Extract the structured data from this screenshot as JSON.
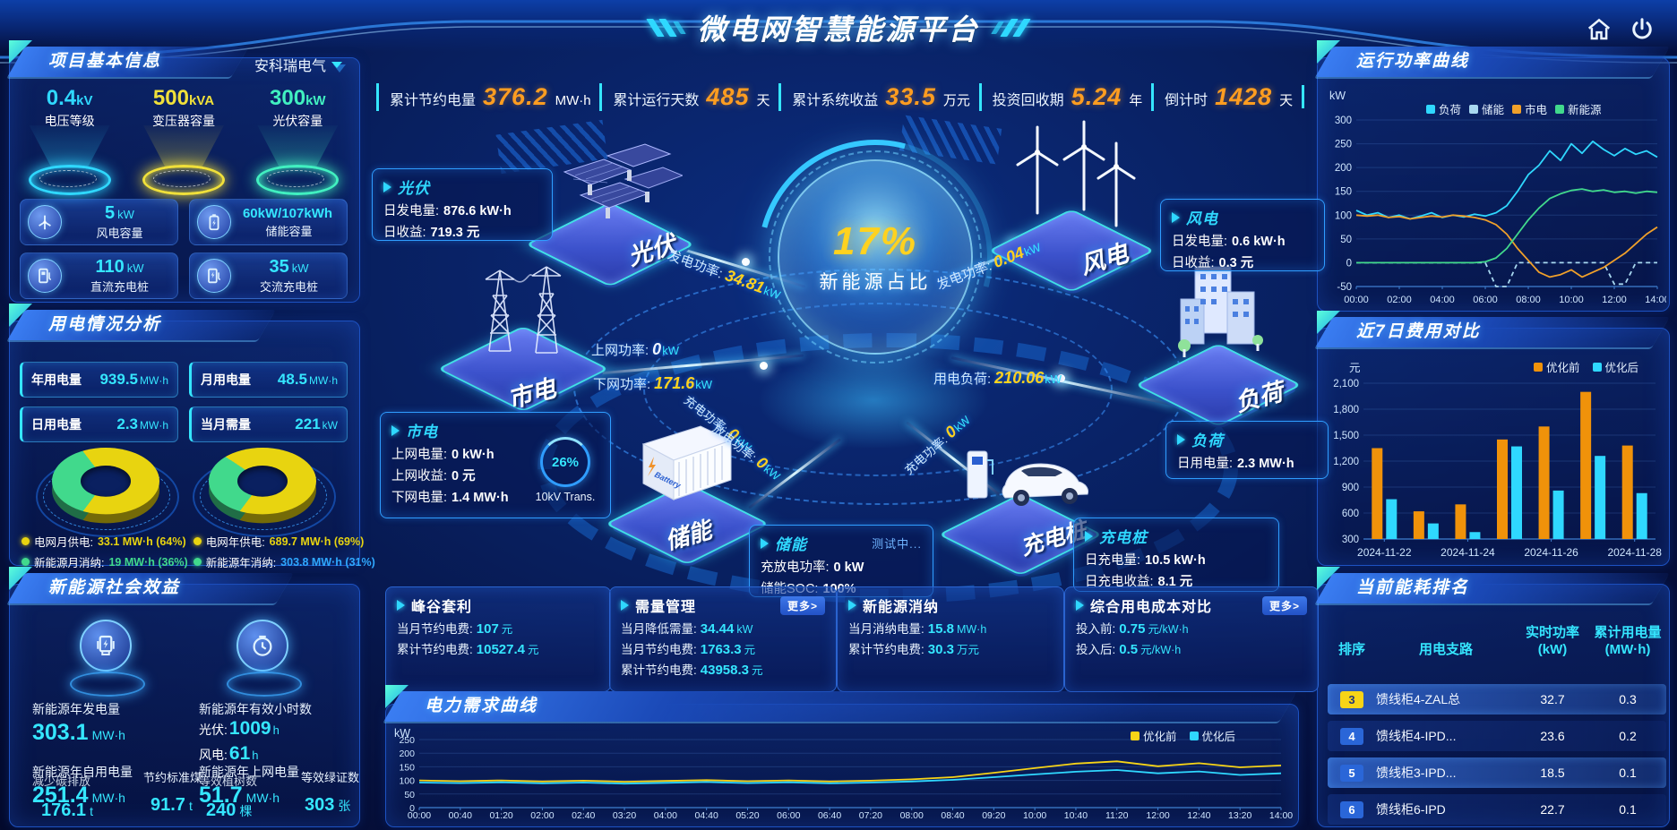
{
  "title_bar": {
    "title": "微电网智慧能源平台"
  },
  "topbar": {
    "items": [
      {
        "label": "累计节约电量",
        "value": "376.2",
        "unit": "MW·h"
      },
      {
        "label": "累计运行天数",
        "value": "485",
        "unit": "天"
      },
      {
        "label": "累计系统收益",
        "value": "33.5",
        "unit": "万元"
      },
      {
        "label": "投资回收期",
        "value": "5.24",
        "unit": "年"
      },
      {
        "label": "倒计时",
        "value": "1428",
        "unit": "天"
      }
    ]
  },
  "left": {
    "project": {
      "header": "项目基本信息",
      "company": "安科瑞电气",
      "pedestals": [
        {
          "value": "0.4",
          "unit": "kV",
          "label": "电压等级",
          "color": "#2fd8ff"
        },
        {
          "value": "500",
          "unit": "kVA",
          "label": "变压器容量",
          "color": "#f0e03a"
        },
        {
          "value": "300",
          "unit": "kW",
          "label": "光伏容量",
          "color": "#41f0c0"
        }
      ],
      "cards": [
        {
          "value": "5",
          "unit": "kW",
          "label": "风电容量",
          "icon": "wind-turbine-icon"
        },
        {
          "value": "60kW/107kWh",
          "unit": "",
          "label": "储能容量",
          "icon": "battery-icon"
        },
        {
          "value": "110",
          "unit": "kW",
          "label": "直流充电桩",
          "icon": "dc-charger-icon"
        },
        {
          "value": "35",
          "unit": "kW",
          "label": "交流充电桩",
          "icon": "ac-charger-icon"
        }
      ]
    },
    "usage": {
      "header": "用电情况分析",
      "chips": [
        {
          "label": "年用电量",
          "value": "939.5",
          "unit": "MW·h"
        },
        {
          "label": "月用电量",
          "value": "48.5",
          "unit": "MW·h"
        },
        {
          "label": "日用电量",
          "value": "2.3",
          "unit": "MW·h"
        },
        {
          "label": "当月需量",
          "value": "221",
          "unit": "kW"
        }
      ],
      "donuts": [
        {
          "main_pct": 64,
          "minor_pct": 36,
          "main_color": "#e8d410",
          "minor_color": "#41d98c"
        },
        {
          "main_pct": 69,
          "minor_pct": 31,
          "main_color": "#e8d410",
          "minor_color": "#41d98c"
        }
      ],
      "legend": [
        {
          "label": "电网月供电:",
          "value": "33.1 MW·h (64%)",
          "dot": "#e8d410",
          "color": "#e8d410"
        },
        {
          "label": "电网年供电:",
          "value": "689.7 MW·h (69%)",
          "dot": "#e8d410",
          "color": "#e8d410"
        },
        {
          "label": "新能源月消纳:",
          "value": "19 MW·h (36%)",
          "dot": "#41d98c",
          "color": "#41d98c"
        },
        {
          "label": "新能源年消纳:",
          "value": "303.8 MW·h (31%)",
          "dot": "#41d98c",
          "color": "#2fa8ff"
        }
      ]
    },
    "benefit": {
      "header": "新能源社会效益",
      "col1": {
        "label": "新能源年发电量",
        "value": "303.1",
        "unit": "MW·h",
        "label2": "新能源年自用电量",
        "value2": "251.4",
        "unit2": "MW·h",
        "overlay_label": "减少碳排放",
        "overlay_value": "176.1",
        "overlay_unit": "t",
        "overlay_label2": "节约标准煤",
        "overlay_value2": "91.7",
        "overlay_unit2": "t"
      },
      "col2": {
        "label": "新能源年有效小时数",
        "pv_k": "光伏:",
        "pv_v": "1009",
        "pv_u": "h",
        "wind_k": "风电:",
        "wind_v": "61",
        "wind_u": "h",
        "label2": "新能源年上网电量",
        "value2": "51.7",
        "unit2": "MW·h",
        "overlay_label": "等效植树数",
        "overlay_value": "240",
        "overlay_unit": "棵",
        "overlay_label2": "等效绿证数",
        "overlay_value2": "303",
        "overlay_unit2": "张"
      }
    }
  },
  "diagram": {
    "orb_value": "17%",
    "orb_label": "新能源占比",
    "devices": {
      "pv": "光伏",
      "wind": "风电",
      "grid": "市电",
      "load": "负荷",
      "storage": "储能",
      "charger": "充电桩"
    },
    "boxes": {
      "pv": {
        "title": "光伏",
        "l1k": "日发电量:",
        "l1v": "876.6 kW·h",
        "l2k": "日收益:",
        "l2v": "719.3 元"
      },
      "wind": {
        "title": "风电",
        "l1k": "日发电量:",
        "l1v": "0.6 kW·h",
        "l2k": "日收益:",
        "l2v": "0.3 元"
      },
      "grid": {
        "title": "市电",
        "l1k": "上网电量:",
        "l1v": "0 kW·h",
        "l2k": "上网收益:",
        "l2v": "0 元",
        "l3k": "下网电量:",
        "l3v": "1.4 MW·h"
      },
      "load": {
        "title": "负荷",
        "l1k": "日用电量:",
        "l1v": "2.3 MW·h"
      },
      "storage": {
        "title": "储能",
        "badge": "测试中...",
        "l1k": "充放电功率:",
        "l1v": "0 kW",
        "l2k": "储能SOC:",
        "l2v": "100%"
      },
      "charger": {
        "title": "充电桩",
        "l1k": "日充电量:",
        "l1v": "10.5 kW·h",
        "l2k": "日充电收益:",
        "l2v": "8.1 元"
      }
    },
    "transformer": {
      "percent": "26%",
      "label": "10kV Trans."
    },
    "flows": [
      {
        "label": "发电功率:",
        "value": "34.81",
        "unit": "kW"
      },
      {
        "label": "上网功率:",
        "value": "0",
        "unit": "kW"
      },
      {
        "label": "下网功率:",
        "value": "171.6",
        "unit": "kW"
      },
      {
        "label": "发电功率:",
        "value": "0.04",
        "unit": "kW"
      },
      {
        "label": "用电负荷:",
        "value": "210.06",
        "unit": "kW"
      },
      {
        "label": "充电功率:",
        "value": "0",
        "unit": "kW"
      },
      {
        "label": "放电功率:",
        "value": "0",
        "unit": "kW"
      },
      {
        "label": "充电功率:",
        "value": "0",
        "unit": "kW"
      }
    ]
  },
  "bottom_panels": [
    {
      "title": "峰谷套利",
      "more": "",
      "lines": [
        {
          "k": "当月节约电费:",
          "v": "107",
          "u": "元"
        },
        {
          "k": "累计节约电费:",
          "v": "10527.4",
          "u": "元"
        }
      ]
    },
    {
      "title": "需量管理",
      "more": "更多>",
      "lines": [
        {
          "k": "当月降低需量:",
          "v": "34.44",
          "u": "kW"
        },
        {
          "k": "当月节约电费:",
          "v": "1763.3",
          "u": "元"
        },
        {
          "k": "累计节约电费:",
          "v": "43958.3",
          "u": "元"
        }
      ]
    },
    {
      "title": "新能源消纳",
      "more": "",
      "lines": [
        {
          "k": "当月消纳电量:",
          "v": "15.8",
          "u": "MW·h"
        },
        {
          "k": "累计节约电费:",
          "v": "30.3",
          "u": "万元"
        }
      ]
    },
    {
      "title": "综合用电成本对比",
      "more": "更多>",
      "lines": [
        {
          "k": "投入前:",
          "v": "0.75",
          "u": "元/kW·h"
        },
        {
          "k": "投入后:",
          "v": "0.5",
          "u": "元/kW·h"
        }
      ]
    }
  ],
  "demand": {
    "header": "电力需求曲线"
  },
  "right": {
    "r1": {
      "header": "运行功率曲线"
    },
    "r2": {
      "header": "近7日费用对比"
    },
    "r3": {
      "header": "当前能耗排名",
      "columns": [
        {
          "t": "排序",
          "s": ""
        },
        {
          "t": "用电支路",
          "s": ""
        },
        {
          "t": "实时功率",
          "s": "(kW)"
        },
        {
          "t": "累计用电量",
          "s": "(MW·h)"
        }
      ],
      "rows": [
        {
          "rank": "3",
          "branch": "馈线柜4-ZAL总",
          "power": "32.7",
          "energy": "0.3",
          "highlight": true,
          "badge": "yellow"
        },
        {
          "rank": "4",
          "branch": "馈线柜4-IPD...",
          "power": "23.6",
          "energy": "0.2",
          "highlight": false,
          "badge": "blue"
        },
        {
          "rank": "5",
          "branch": "馈线柜3-IPD...",
          "power": "18.5",
          "energy": "0.1",
          "highlight": true,
          "badge": "blue"
        },
        {
          "rank": "6",
          "branch": "馈线柜6-IPD",
          "power": "22.7",
          "energy": "0.1",
          "highlight": false,
          "badge": "blue"
        }
      ]
    }
  },
  "chart_data": [
    {
      "id": "power_curve",
      "type": "line",
      "title": "运行功率曲线",
      "ylabel": "kW",
      "ylim": [
        -50,
        300
      ],
      "yticks": [
        300,
        250,
        200,
        150,
        100,
        50,
        0,
        -50
      ],
      "xticks": [
        "00:00",
        "02:00",
        "04:00",
        "06:00",
        "08:00",
        "10:00",
        "12:00",
        "14:00"
      ],
      "legend_position": "top",
      "grid": true,
      "series": [
        {
          "name": "负荷",
          "color": "#2fd8ff",
          "values": [
            110,
            100,
            105,
            95,
            100,
            92,
            98,
            105,
            95,
            100,
            96,
            102,
            98,
            105,
            120,
            150,
            185,
            205,
            235,
            215,
            250,
            230,
            255,
            238,
            225,
            240,
            228,
            235,
            222
          ]
        },
        {
          "name": "储能",
          "color": "#a8d8f0",
          "dash": true,
          "values": [
            0,
            0,
            0,
            0,
            0,
            0,
            0,
            0,
            0,
            0,
            0,
            0,
            0,
            -50,
            -50,
            0,
            0,
            0,
            0,
            0,
            0,
            0,
            0,
            0,
            -45,
            -45,
            0,
            0,
            0
          ]
        },
        {
          "name": "市电",
          "color": "#f0a02a",
          "values": [
            100,
            98,
            100,
            95,
            97,
            92,
            95,
            98,
            96,
            100,
            98,
            95,
            90,
            80,
            60,
            30,
            5,
            -20,
            -30,
            -25,
            -15,
            -30,
            -20,
            -10,
            5,
            20,
            40,
            60,
            75
          ]
        },
        {
          "name": "新能源",
          "color": "#41d98c",
          "values": [
            0,
            0,
            0,
            0,
            0,
            0,
            0,
            0,
            0,
            0,
            0,
            0,
            2,
            10,
            30,
            60,
            90,
            115,
            135,
            145,
            152,
            155,
            150,
            153,
            148,
            150,
            146,
            150,
            148
          ]
        }
      ]
    },
    {
      "id": "cost_compare",
      "type": "bar",
      "title": "近7日费用对比",
      "ylabel": "元",
      "ylim": [
        300,
        2100
      ],
      "yticks": [
        2100,
        1800,
        1500,
        1200,
        900,
        600,
        300
      ],
      "categories": [
        "2024-11-22",
        "2024-11-23",
        "2024-11-24",
        "2024-11-25",
        "2024-11-26",
        "2024-11-27",
        "2024-11-28"
      ],
      "xticks": [
        "2024-11-22",
        "2024-11-24",
        "2024-11-26",
        "2024-11-28"
      ],
      "legend_position": "top",
      "grid": true,
      "series": [
        {
          "name": "优化前",
          "color": "#f0920a",
          "values": [
            1350,
            620,
            700,
            1450,
            1600,
            2000,
            1380
          ]
        },
        {
          "name": "优化后",
          "color": "#2fd8ff",
          "values": [
            760,
            480,
            380,
            1370,
            860,
            1260,
            830
          ]
        }
      ]
    },
    {
      "id": "demand_curve",
      "type": "line",
      "title": "电力需求曲线",
      "ylabel": "kW",
      "ylim": [
        0,
        250
      ],
      "yticks": [
        250,
        200,
        150,
        100,
        50,
        0
      ],
      "xticks": [
        "00:00",
        "00:40",
        "01:20",
        "02:00",
        "02:40",
        "03:20",
        "04:00",
        "04:40",
        "05:20",
        "06:00",
        "06:40",
        "07:20",
        "08:00",
        "08:40",
        "09:20",
        "10:00",
        "10:40",
        "11:20",
        "12:00",
        "12:40",
        "13:20",
        "14:00"
      ],
      "legend_position": "top-right",
      "grid": true,
      "series": [
        {
          "name": "优化前",
          "color": "#f7d417",
          "values": [
            100,
            97,
            100,
            96,
            99,
            95,
            98,
            101,
            97,
            100,
            96,
            99,
            104,
            112,
            128,
            145,
            162,
            170,
            152,
            163,
            148,
            155
          ]
        },
        {
          "name": "优化后",
          "color": "#2fd8ff",
          "values": [
            92,
            90,
            93,
            89,
            92,
            88,
            91,
            94,
            90,
            93,
            89,
            92,
            96,
            102,
            112,
            122,
            132,
            138,
            126,
            133,
            120,
            126
          ]
        }
      ]
    },
    {
      "id": "supply_month_donut",
      "type": "pie",
      "slices": [
        {
          "label": "电网月供电",
          "value": 64,
          "color": "#e8d410"
        },
        {
          "label": "新能源月消纳",
          "value": 36,
          "color": "#41d98c"
        }
      ]
    },
    {
      "id": "supply_year_donut",
      "type": "pie",
      "slices": [
        {
          "label": "电网年供电",
          "value": 69,
          "color": "#e8d410"
        },
        {
          "label": "新能源年消纳",
          "value": 31,
          "color": "#41d98c"
        }
      ]
    }
  ]
}
